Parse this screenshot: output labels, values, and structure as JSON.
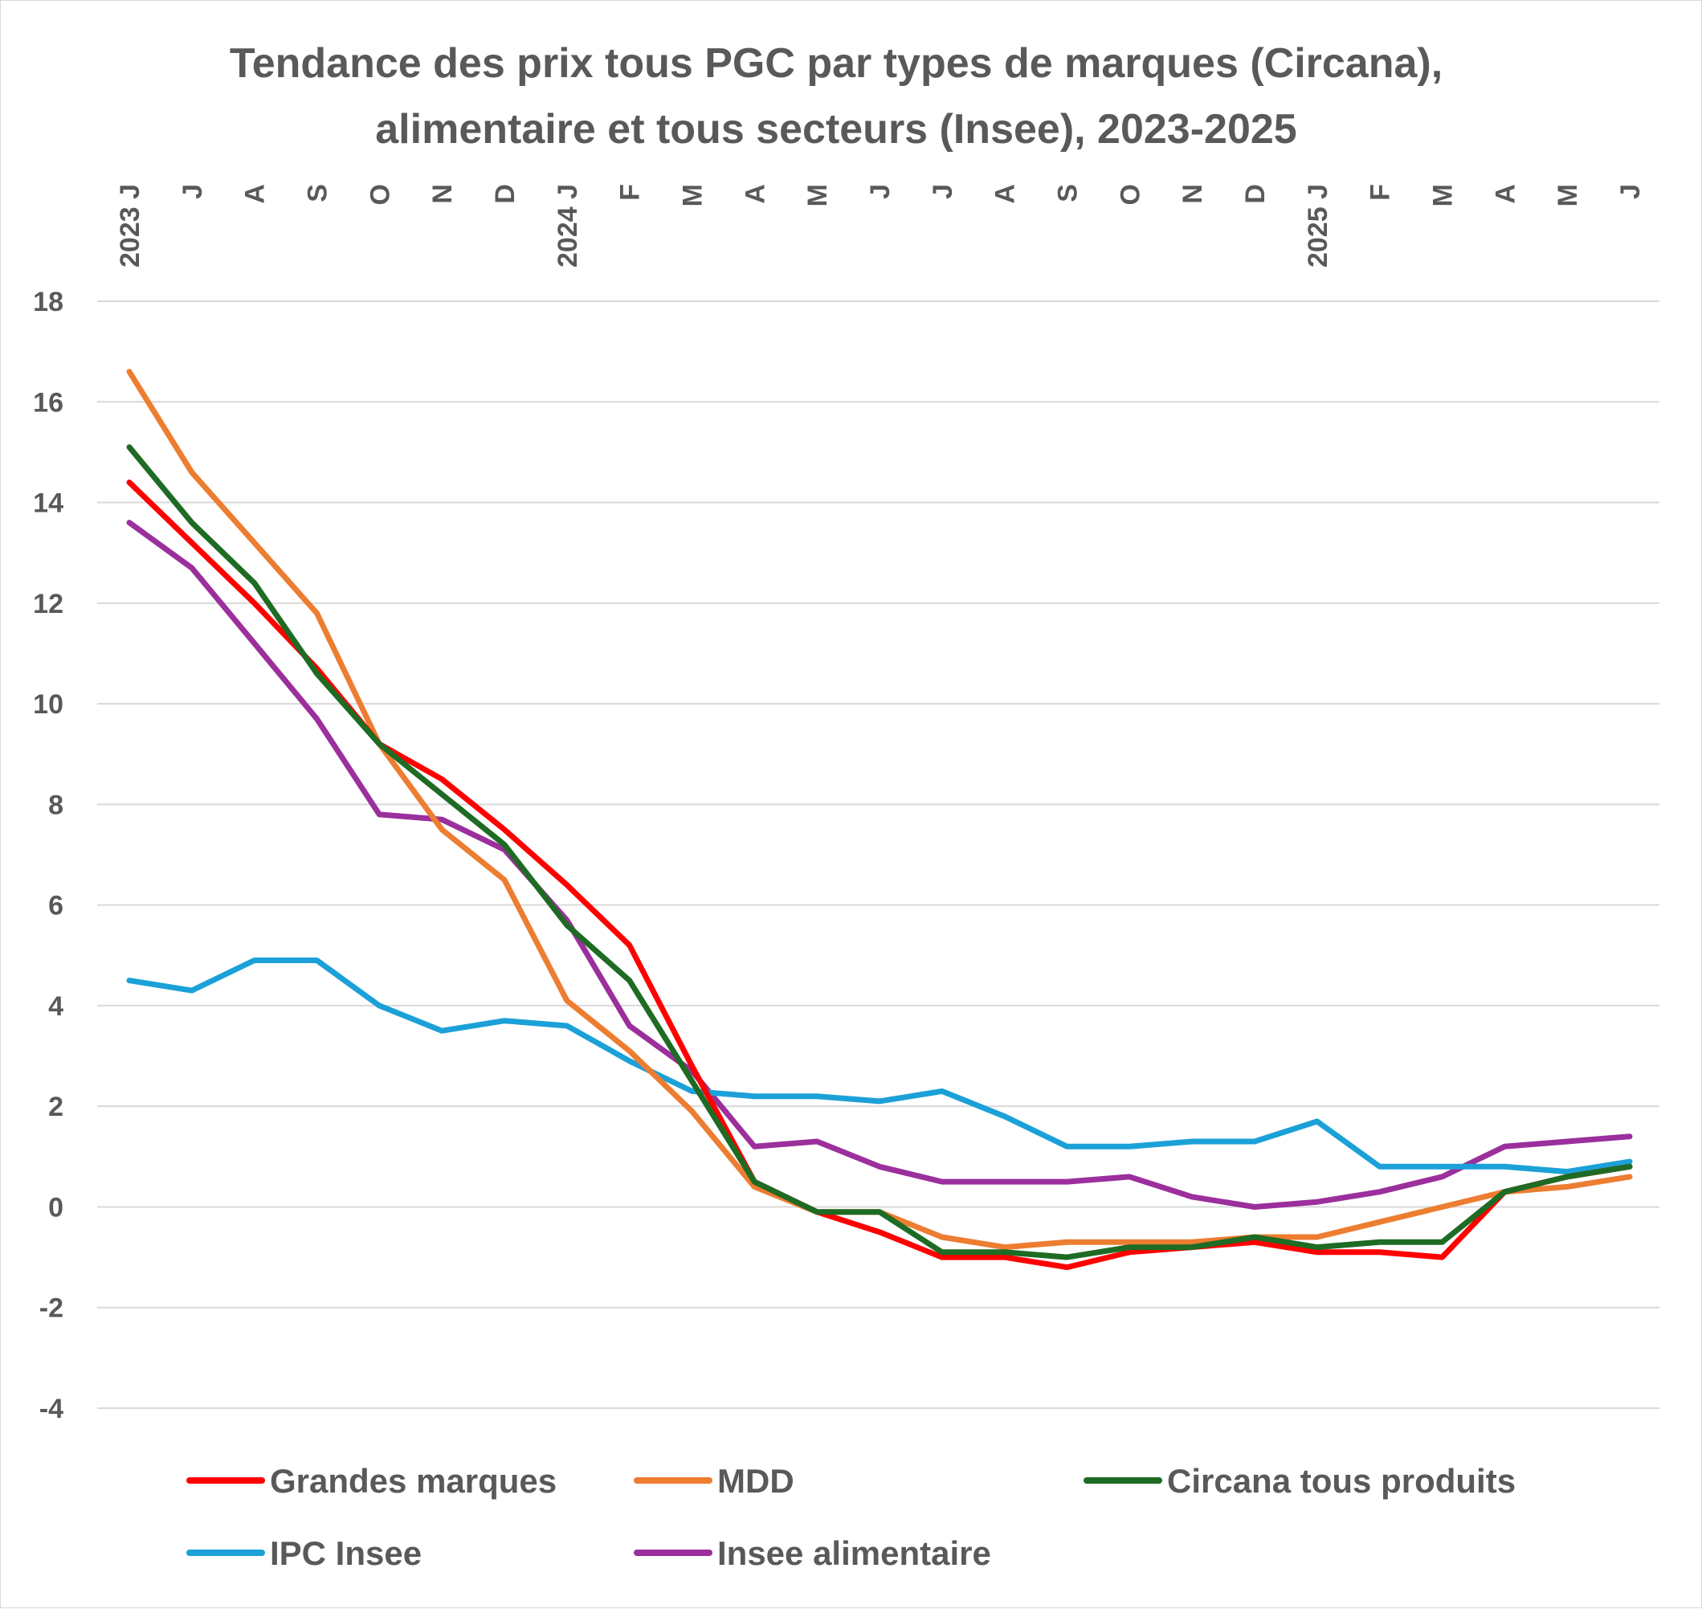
{
  "chart_data": {
    "type": "line",
    "title": "Tendance des prix tous PGC par types de marques (Circana), alimentaire et tous secteurs (Insee), 2023-2025",
    "title_lines": [
      "Tendance des prix tous PGC par types de marques (Circana),",
      "alimentaire et tous secteurs (Insee), 2023-2025"
    ],
    "categories": [
      "2023 J",
      "J",
      "A",
      "S",
      "O",
      "N",
      "D",
      "2024 J",
      "F",
      "M",
      "A",
      "M",
      "J",
      "J",
      "A",
      "S",
      "O",
      "N",
      "D",
      "2025 J",
      "F",
      "M",
      "A",
      "M",
      "J"
    ],
    "ylim": [
      -4,
      18
    ],
    "yticks": [
      -4,
      -2,
      0,
      2,
      4,
      6,
      8,
      10,
      12,
      14,
      16,
      18
    ],
    "grid": true,
    "legend_position": "bottom",
    "series": [
      {
        "name": "Grandes marques",
        "color": "#FF0000",
        "values": [
          14.4,
          13.2,
          12.0,
          10.7,
          9.2,
          8.5,
          7.5,
          6.4,
          5.2,
          2.8,
          0.5,
          -0.1,
          -0.5,
          -1.0,
          -1.0,
          -1.2,
          -0.9,
          -0.8,
          -0.7,
          -0.9,
          -0.9,
          -1.0,
          0.3,
          0.6,
          0.8
        ]
      },
      {
        "name": "MDD",
        "color": "#ED7D31",
        "values": [
          16.6,
          14.6,
          13.2,
          11.8,
          9.2,
          7.5,
          6.5,
          4.1,
          3.1,
          1.9,
          0.4,
          -0.1,
          -0.1,
          -0.6,
          -0.8,
          -0.7,
          -0.7,
          -0.7,
          -0.6,
          -0.6,
          -0.3,
          0.0,
          0.3,
          0.4,
          0.6
        ]
      },
      {
        "name": "Circana tous produits",
        "color": "#1E6B24",
        "values": [
          15.1,
          13.6,
          12.4,
          10.6,
          9.2,
          8.2,
          7.2,
          5.6,
          4.5,
          2.5,
          0.5,
          -0.1,
          -0.1,
          -0.9,
          -0.9,
          -1.0,
          -0.8,
          -0.8,
          -0.6,
          -0.8,
          -0.7,
          -0.7,
          0.3,
          0.6,
          0.8
        ]
      },
      {
        "name": "IPC Insee",
        "color": "#1BA1D8",
        "values": [
          4.5,
          4.3,
          4.9,
          4.9,
          4.0,
          3.5,
          3.7,
          3.6,
          2.9,
          2.3,
          2.2,
          2.2,
          2.1,
          2.3,
          1.8,
          1.2,
          1.2,
          1.3,
          1.3,
          1.7,
          0.8,
          0.8,
          0.8,
          0.7,
          0.9
        ]
      },
      {
        "name": "Insee alimentaire",
        "color": "#9B2F9C",
        "values": [
          13.6,
          12.7,
          11.2,
          9.7,
          7.8,
          7.7,
          7.1,
          5.7,
          3.6,
          2.7,
          1.2,
          1.3,
          0.8,
          0.5,
          0.5,
          0.5,
          0.6,
          0.2,
          0.0,
          0.1,
          0.3,
          0.6,
          1.2,
          1.3,
          1.4
        ]
      }
    ]
  }
}
